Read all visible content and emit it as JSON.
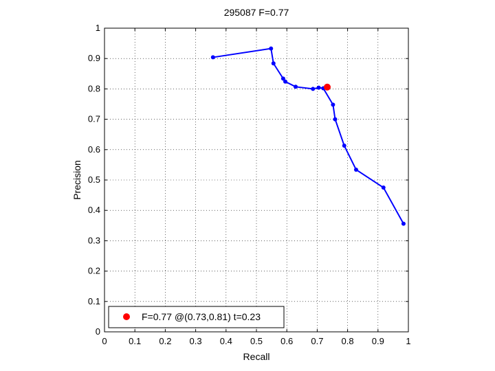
{
  "chart_data": {
    "type": "line",
    "title": "295087 F=0.77",
    "xlabel": "Recall",
    "ylabel": "Precision",
    "xlim": [
      0,
      1
    ],
    "ylim": [
      0,
      1
    ],
    "xticks": [
      "0",
      "0.1",
      "0.2",
      "0.3",
      "0.4",
      "0.5",
      "0.6",
      "0.7",
      "0.8",
      "0.9",
      "1"
    ],
    "yticks": [
      "0",
      "0.1",
      "0.2",
      "0.3",
      "0.4",
      "0.5",
      "0.6",
      "0.7",
      "0.8",
      "0.9",
      "1"
    ],
    "grid": true,
    "legend_position": "bottom-left",
    "series": [
      {
        "color": "#0000ff",
        "points": [
          {
            "x": 0.357,
            "y": 0.904
          },
          {
            "x": 0.548,
            "y": 0.933
          },
          {
            "x": 0.556,
            "y": 0.884
          },
          {
            "x": 0.588,
            "y": 0.834
          },
          {
            "x": 0.595,
            "y": 0.824
          },
          {
            "x": 0.629,
            "y": 0.807
          },
          {
            "x": 0.686,
            "y": 0.8
          },
          {
            "x": 0.705,
            "y": 0.804
          },
          {
            "x": 0.72,
            "y": 0.802
          },
          {
            "x": 0.752,
            "y": 0.748
          },
          {
            "x": 0.759,
            "y": 0.7
          },
          {
            "x": 0.789,
            "y": 0.613
          },
          {
            "x": 0.828,
            "y": 0.534
          },
          {
            "x": 0.918,
            "y": 0.475
          },
          {
            "x": 0.984,
            "y": 0.356
          }
        ]
      }
    ],
    "best_point": {
      "x": 0.733,
      "y": 0.806,
      "color": "#ff0000"
    },
    "legend": {
      "label": "F=0.77 @(0.73,0.81) t=0.23",
      "marker_color": "#ff0000"
    }
  }
}
